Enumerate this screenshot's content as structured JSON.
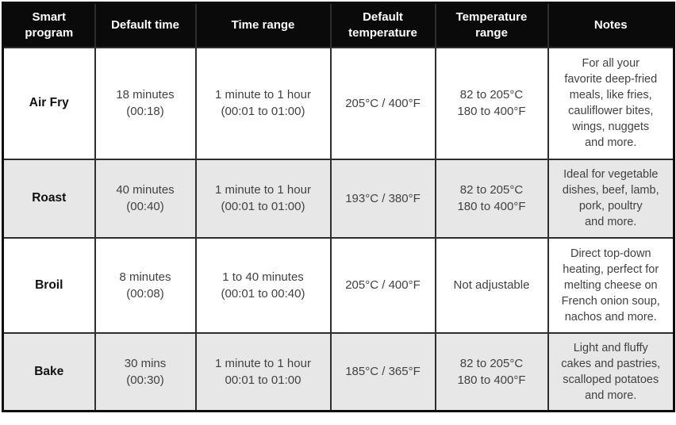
{
  "colors": {
    "header_bg": "#0a0a0a",
    "header_text": "#ffffff",
    "row_white_bg": "#ffffff",
    "row_shaded_bg": "#e7e7e7",
    "cell_text": "#3f4245",
    "border": "#2e2e2e"
  },
  "table": {
    "columns": [
      "Smart\nprogram",
      "Default time",
      "Time range",
      "Default\ntemperature",
      "Temperature\nrange",
      "Notes"
    ],
    "rows": [
      {
        "program": "Air Fry",
        "default_time": "18 minutes\n(00:18)",
        "time_range": "1 minute to 1 hour\n(00:01 to 01:00)",
        "default_temperature": "205°C / 400°F",
        "temperature_range": "82 to 205°C\n180 to 400°F",
        "notes": "For all your\nfavorite deep-fried\nmeals, like fries,\ncauliflower bites,\nwings, nuggets\nand more."
      },
      {
        "program": "Roast",
        "default_time": "40 minutes\n(00:40)",
        "time_range": "1 minute to 1 hour\n(00:01 to 01:00)",
        "default_temperature": "193°C / 380°F",
        "temperature_range": "82 to 205°C\n180 to 400°F",
        "notes": "Ideal for vegetable\ndishes, beef, lamb,\npork, poultry\nand more."
      },
      {
        "program": "Broil",
        "default_time": "8 minutes\n(00:08)",
        "time_range": "1 to 40 minutes\n(00:01 to 00:40)",
        "default_temperature": "205°C / 400°F",
        "temperature_range": "Not adjustable",
        "notes": "Direct top-down\nheating, perfect for\nmelting cheese on\nFrench onion soup,\nnachos and more."
      },
      {
        "program": "Bake",
        "default_time": "30 mins\n(00:30)",
        "time_range": "1 minute to 1 hour\n00:01 to 01:00",
        "default_temperature": "185°C / 365°F",
        "temperature_range": "82 to 205°C\n180 to 400°F",
        "notes": "Light and fluffy\ncakes and pastries,\nscalloped potatoes\nand more."
      }
    ]
  }
}
